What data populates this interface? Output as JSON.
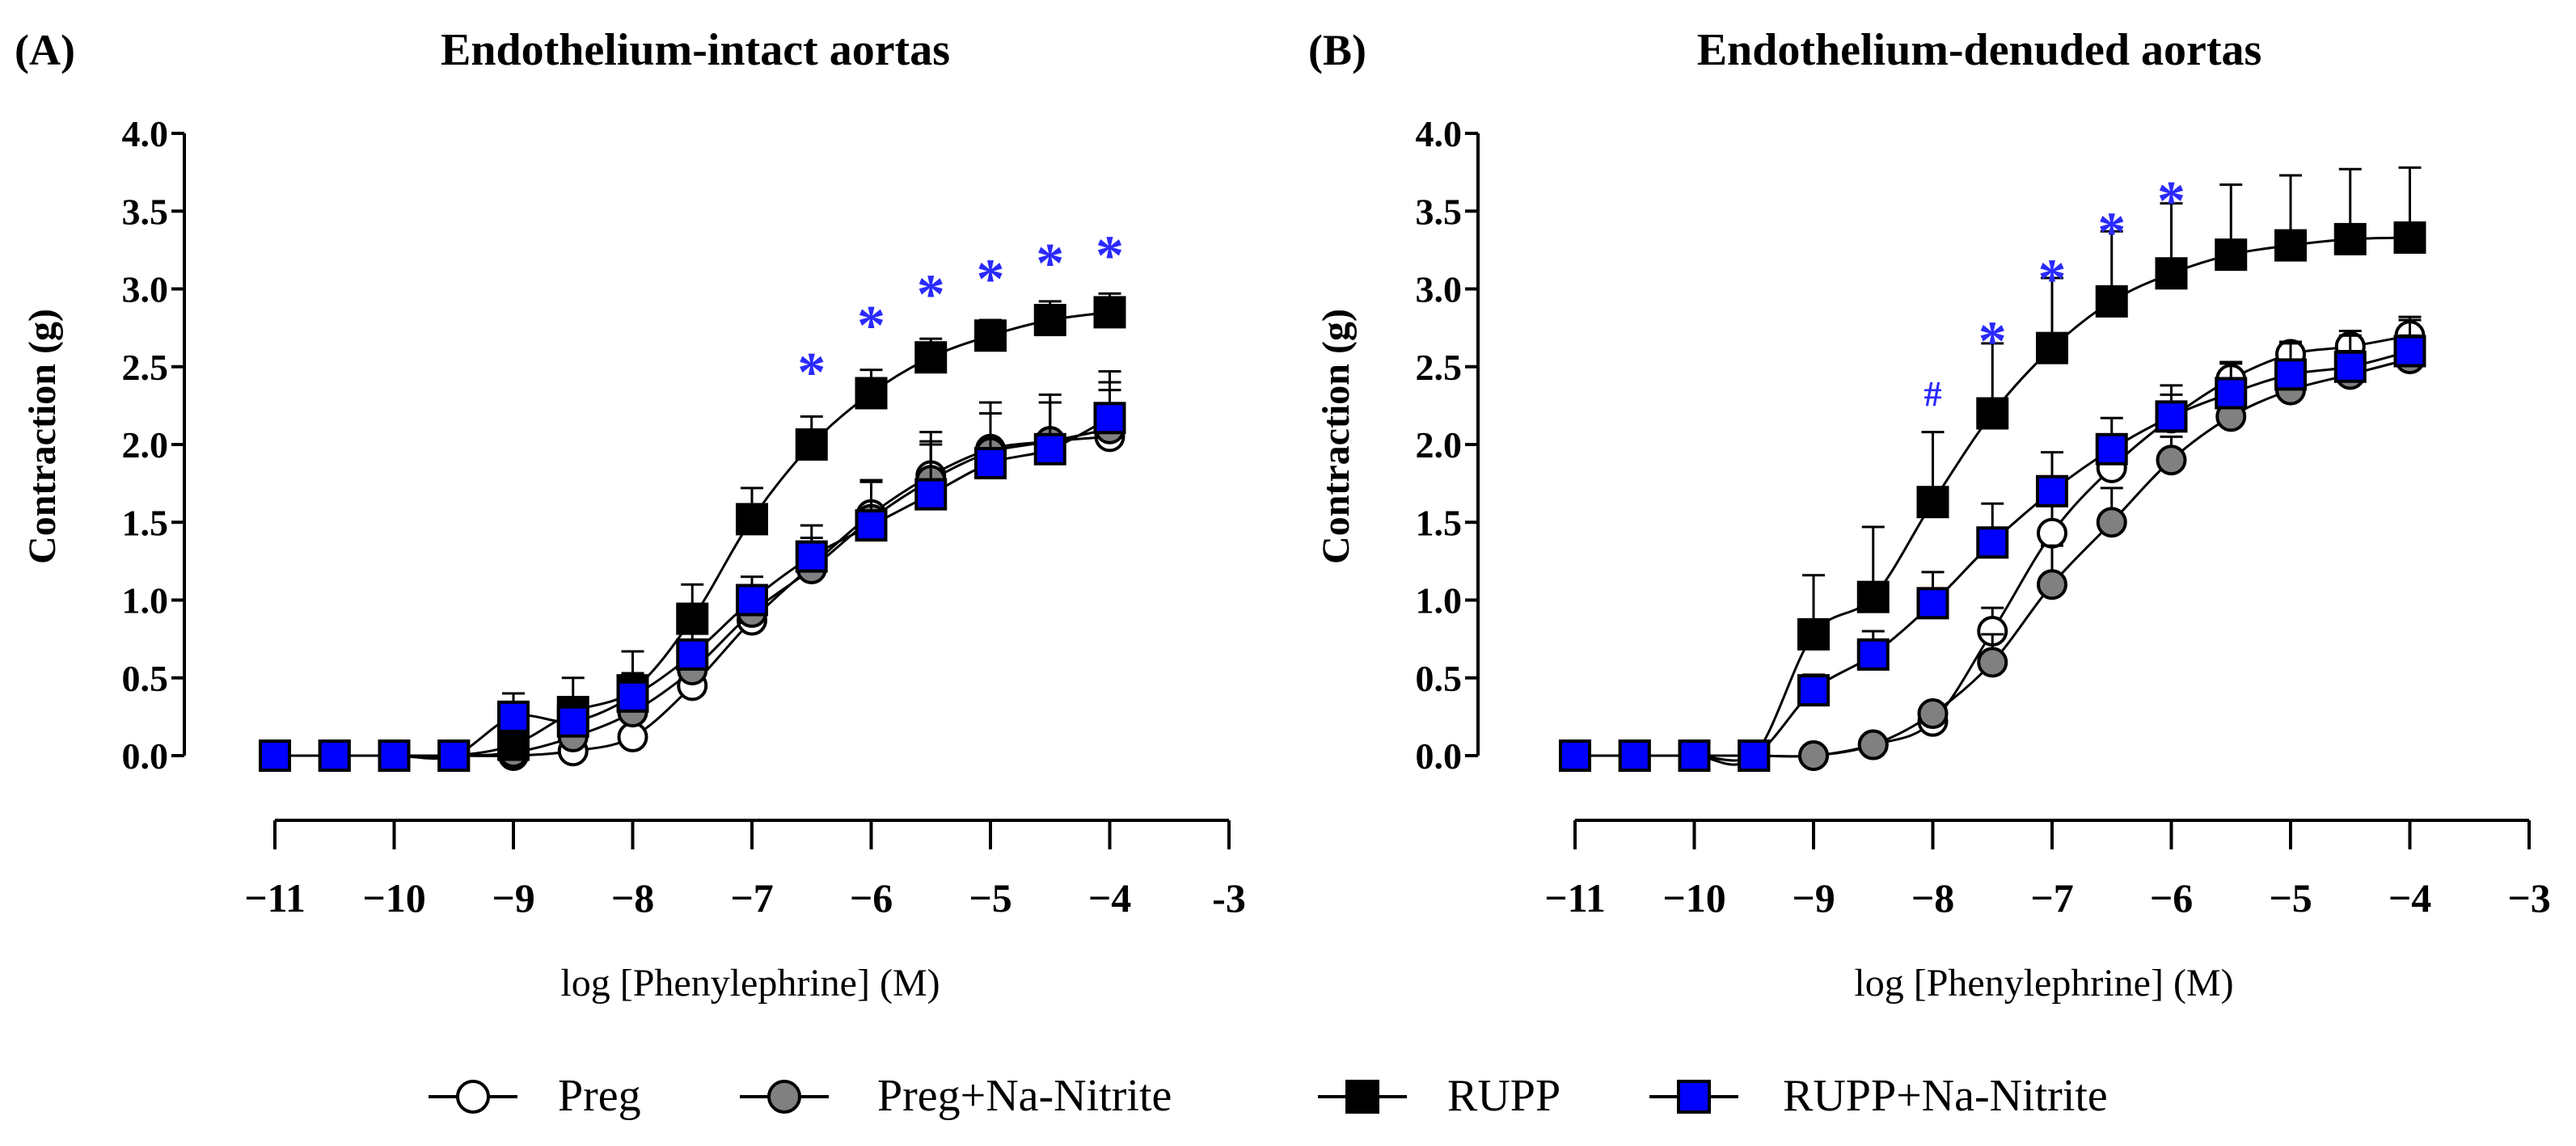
{
  "colors": {
    "preg": "#ffffff",
    "preg_nitrite": "#808080",
    "rupp": "#000000",
    "rupp_nitrite": "#0000ff",
    "star": "#2a2aff",
    "axis": "#000000"
  },
  "legend": {
    "items": [
      {
        "label": "Preg",
        "series": "preg"
      },
      {
        "label": "Preg+Na-Nitrite",
        "series": "preg_nitrite"
      },
      {
        "label": "RUPP",
        "series": "rupp"
      },
      {
        "label": "RUPP+Na-Nitrite",
        "series": "rupp_nitrite"
      }
    ]
  },
  "chart_data": [
    {
      "panel_label": "(A)",
      "type": "line",
      "title": "Endothelium-intact aortas",
      "xlabel": "log [Phenylephrine] (M)",
      "ylabel": "Contraction (g)",
      "xlim": [
        -11,
        -3
      ],
      "ylim": [
        0,
        4
      ],
      "xticks": [
        -11,
        -10,
        -9,
        -8,
        -7,
        -6,
        -5,
        -4,
        -3
      ],
      "xtick_labels": [
        "−11",
        "−10",
        "−9",
        "−8",
        "−7",
        "−6",
        "−5",
        "−4",
        "-3"
      ],
      "yticks": [
        0,
        0.5,
        1,
        1.5,
        2,
        2.5,
        3,
        3.5,
        4
      ],
      "ytick_labels": [
        "0.0",
        "0.5",
        "1.0",
        "1.5",
        "2.0",
        "2.5",
        "3.0",
        "3.5",
        "4.0"
      ],
      "x": [
        -11,
        -10.5,
        -10,
        -9.5,
        -9,
        -8.5,
        -8,
        -7.5,
        -7,
        -6.5,
        -6,
        -5.5,
        -5,
        -4.5,
        -4
      ],
      "series": [
        {
          "name": "Preg",
          "key": "preg",
          "marker": "circle",
          "values": [
            0,
            0,
            0,
            0,
            0,
            0.03,
            0.12,
            0.45,
            0.87,
            1.22,
            1.55,
            1.8,
            1.97,
            2.02,
            2.05
          ],
          "errors": [
            0,
            0,
            0,
            0,
            0,
            0,
            0,
            0.06,
            0.08,
            0.15,
            0.22,
            0.28,
            0.3,
            0.3,
            0.3
          ]
        },
        {
          "name": "Preg+Na-Nitrite",
          "key": "preg_nitrite",
          "marker": "circle",
          "values": [
            0,
            0,
            0,
            0,
            0.02,
            0.12,
            0.28,
            0.55,
            0.92,
            1.2,
            1.52,
            1.77,
            1.95,
            2.02,
            2.1
          ],
          "errors": [
            0,
            0,
            0,
            0,
            0.02,
            0.08,
            0.12,
            0.12,
            0.14,
            0.2,
            0.25,
            0.25,
            0.25,
            0.25,
            0.3
          ]
        },
        {
          "name": "RUPP",
          "key": "rupp",
          "marker": "square",
          "values": [
            0,
            0,
            0,
            0,
            0.07,
            0.28,
            0.42,
            0.88,
            1.52,
            2.0,
            2.33,
            2.56,
            2.7,
            2.8,
            2.85
          ],
          "errors": [
            0,
            0,
            0,
            0,
            0.08,
            0.22,
            0.25,
            0.22,
            0.2,
            0.18,
            0.15,
            0.12,
            0.1,
            0.12,
            0.12
          ]
        },
        {
          "name": "RUPP+Na-Nitrite",
          "key": "rupp_nitrite",
          "marker": "square",
          "values": [
            0,
            0,
            0,
            0,
            0.25,
            0.22,
            0.38,
            0.65,
            1.0,
            1.28,
            1.48,
            1.68,
            1.88,
            1.97,
            2.17
          ],
          "errors": [
            0,
            0,
            0,
            0,
            0.15,
            0.15,
            0.15,
            0.15,
            0.15,
            0.2,
            0.28,
            0.32,
            0.32,
            0.3,
            0.3
          ]
        }
      ],
      "annotations": [
        {
          "text": "*",
          "x": -6.5,
          "y": 2.5
        },
        {
          "text": "*",
          "x": -6,
          "y": 2.8
        },
        {
          "text": "*",
          "x": -5.5,
          "y": 3.0
        },
        {
          "text": "*",
          "x": -5,
          "y": 3.1
        },
        {
          "text": "*",
          "x": -4.5,
          "y": 3.2
        },
        {
          "text": "*",
          "x": -4,
          "y": 3.25
        }
      ]
    },
    {
      "panel_label": "(B)",
      "type": "line",
      "title": "Endothelium-denuded aortas",
      "xlabel": "log [Phenylephrine] (M)",
      "ylabel": "Contraction (g)",
      "xlim": [
        -11,
        -3
      ],
      "ylim": [
        0,
        4
      ],
      "xticks": [
        -11,
        -10,
        -9,
        -8,
        -7,
        -6,
        -5,
        -4,
        -3
      ],
      "xtick_labels": [
        "−11",
        "−10",
        "−9",
        "−8",
        "−7",
        "−6",
        "−5",
        "−4",
        "−3"
      ],
      "yticks": [
        0,
        0.5,
        1,
        1.5,
        2,
        2.5,
        3,
        3.5,
        4
      ],
      "ytick_labels": [
        "0.0",
        "0.5",
        "1.0",
        "1.5",
        "2.0",
        "2.5",
        "3.0",
        "3.5",
        "4.0"
      ],
      "x": [
        -11,
        -10.5,
        -10,
        -9.5,
        -9,
        -8.5,
        -8,
        -7.5,
        -7,
        -6.5,
        -6,
        -5.5,
        -5,
        -4.5,
        -4
      ],
      "series": [
        {
          "name": "Preg",
          "key": "preg",
          "marker": "circle",
          "values": [
            0,
            0,
            0,
            0,
            0,
            0.07,
            0.22,
            0.8,
            1.43,
            1.85,
            2.17,
            2.42,
            2.58,
            2.63,
            2.7
          ],
          "errors": [
            0,
            0,
            0,
            0,
            0,
            0,
            0.04,
            0.15,
            0.2,
            0.2,
            0.15,
            0.1,
            0.08,
            0.1,
            0.12
          ]
        },
        {
          "name": "Preg+Na-Nitrite",
          "key": "preg_nitrite",
          "marker": "circle",
          "values": [
            0,
            0,
            0,
            0,
            0,
            0.07,
            0.27,
            0.6,
            1.1,
            1.5,
            1.9,
            2.18,
            2.35,
            2.45,
            2.55
          ],
          "errors": [
            0,
            0,
            0,
            0,
            0,
            0,
            0.05,
            0.18,
            0.25,
            0.22,
            0.15,
            0.15,
            0.15,
            0.15,
            0.15
          ]
        },
        {
          "name": "RUPP",
          "key": "rupp",
          "marker": "square",
          "values": [
            0,
            0,
            0,
            0,
            0.78,
            1.02,
            1.63,
            2.2,
            2.62,
            2.92,
            3.1,
            3.22,
            3.28,
            3.32,
            3.33
          ],
          "errors": [
            0,
            0,
            0,
            0,
            0.38,
            0.45,
            0.45,
            0.45,
            0.45,
            0.45,
            0.45,
            0.45,
            0.45,
            0.45,
            0.45
          ]
        },
        {
          "name": "RUPP+Na-Nitrite",
          "key": "rupp_nitrite",
          "marker": "square",
          "values": [
            0,
            0,
            0,
            0,
            0.42,
            0.65,
            0.98,
            1.37,
            1.7,
            1.97,
            2.18,
            2.33,
            2.45,
            2.5,
            2.6
          ],
          "errors": [
            0,
            0,
            0,
            0,
            0.1,
            0.15,
            0.2,
            0.25,
            0.25,
            0.2,
            0.2,
            0.2,
            0.2,
            0.2,
            0.2
          ]
        }
      ],
      "annotations": [
        {
          "text": "#",
          "x": -8,
          "y": 2.25
        },
        {
          "text": "*",
          "x": -7.5,
          "y": 2.7
        },
        {
          "text": "*",
          "x": -7,
          "y": 3.1
        },
        {
          "text": "*",
          "x": -6.5,
          "y": 3.4
        },
        {
          "text": "*",
          "x": -6,
          "y": 3.6
        }
      ]
    }
  ]
}
